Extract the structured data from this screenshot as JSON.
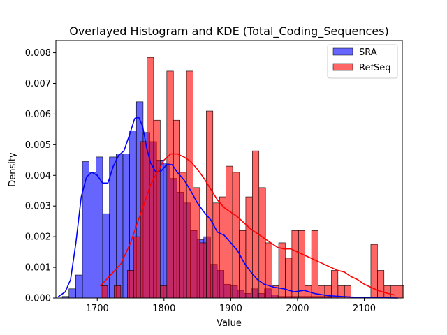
{
  "chart_data": {
    "type": "histogram",
    "title": "Overlayed Histogram and KDE (Total_Coding_Sequences)",
    "xlabel": "Value",
    "ylabel": "Density",
    "xlim": [
      1638,
      2157
    ],
    "ylim": [
      0,
      0.0084
    ],
    "xticks": [
      1700,
      1800,
      1900,
      2000,
      2100
    ],
    "yticks": [
      0.0,
      0.001,
      0.002,
      0.003,
      0.004,
      0.005,
      0.006,
      0.007,
      0.008
    ],
    "ytick_labels": [
      "0.000",
      "0.001",
      "0.002",
      "0.003",
      "0.004",
      "0.005",
      "0.006",
      "0.007",
      "0.008"
    ],
    "grid": false,
    "legend_position": "top-right",
    "series": [
      {
        "name": "SRA",
        "color": "#0000ff",
        "bar_alpha": 0.6,
        "bin_start": 1647.5,
        "bin_width": 10.1,
        "densities": [
          5e-05,
          0.0003,
          0.00075,
          0.00445,
          0.0041,
          0.0046,
          0.00275,
          0.0046,
          0.0047,
          0.0047,
          0.00545,
          0.0064,
          0.0054,
          0.0051,
          0.0045,
          0.0044,
          0.0039,
          0.00345,
          0.0031,
          0.0022,
          0.0019,
          0.002,
          0.0011,
          0.0009,
          0.00045,
          0.0004,
          0.00025,
          0.00015,
          0.0003,
          0.00015,
          0.0003,
          0.0001,
          5e-05,
          5e-05,
          5e-05,
          5e-05,
          5e-05,
          5e-05,
          5e-05,
          5e-05
        ]
      },
      {
        "name": "RefSeq",
        "color": "#ff0000",
        "bar_alpha": 0.6,
        "bin_start": 1705.6,
        "bin_width": 9.86,
        "densities": [
          0.0004,
          0.0,
          0.0004,
          0.0,
          0.0009,
          0.002,
          0.0051,
          0.00785,
          0.0058,
          0.0004,
          0.0074,
          0.0058,
          0.0041,
          0.0074,
          0.0036,
          0.0018,
          0.0061,
          0.0031,
          0.0033,
          0.0043,
          0.0041,
          0.0022,
          0.0033,
          0.0048,
          0.0036,
          0.0018,
          0.0004,
          0.0018,
          0.0013,
          0.0022,
          0.0022,
          0.0004,
          0.0022,
          0.0004,
          0.0004,
          0.0009,
          0.0004,
          0.0004,
          0.0,
          0.0,
          0.0,
          0.00175,
          0.0009,
          0.0004,
          0.0004,
          0.0004
        ]
      }
    ],
    "kde": [
      {
        "name": "SRA",
        "color": "#0000ff",
        "x": [
          1642,
          1652,
          1660,
          1668,
          1676,
          1684,
          1692,
          1700,
          1708,
          1716,
          1724,
          1732,
          1740,
          1748,
          1756,
          1762,
          1768,
          1774,
          1780,
          1788,
          1796,
          1804,
          1812,
          1820,
          1830,
          1840,
          1850,
          1860,
          1870,
          1880,
          1890,
          1900,
          1910,
          1920,
          1930,
          1940,
          1950,
          1965,
          1980,
          1995,
          2010,
          2025,
          2045,
          2065,
          2090,
          2120,
          2150
        ],
        "y": [
          5e-05,
          0.0002,
          0.0006,
          0.0018,
          0.0033,
          0.00395,
          0.0041,
          0.004,
          0.00375,
          0.00375,
          0.0043,
          0.00465,
          0.0048,
          0.0053,
          0.00585,
          0.0059,
          0.0056,
          0.0049,
          0.0044,
          0.0041,
          0.00415,
          0.00435,
          0.00435,
          0.0041,
          0.00385,
          0.0035,
          0.0031,
          0.0028,
          0.00255,
          0.00215,
          0.00205,
          0.0018,
          0.00155,
          0.00115,
          0.00085,
          0.0006,
          0.00045,
          0.00035,
          0.0003,
          0.0002,
          0.00025,
          0.00015,
          8e-05,
          5e-05,
          2e-05,
          1e-05,
          0.0
        ]
      },
      {
        "name": "RefSeq",
        "color": "#ff0000",
        "x": [
          1705,
          1720,
          1735,
          1750,
          1760,
          1770,
          1780,
          1790,
          1800,
          1810,
          1820,
          1830,
          1840,
          1850,
          1860,
          1870,
          1880,
          1890,
          1900,
          1910,
          1920,
          1930,
          1940,
          1950,
          1960,
          1970,
          1980,
          1990,
          2000,
          2010,
          2020,
          2030,
          2040,
          2050,
          2060,
          2070,
          2080,
          2090,
          2100,
          2110,
          2120,
          2130,
          2145
        ],
        "y": [
          0.0004,
          0.00075,
          0.0011,
          0.0018,
          0.00245,
          0.00305,
          0.0037,
          0.0041,
          0.0045,
          0.0047,
          0.0047,
          0.0046,
          0.00445,
          0.0042,
          0.0039,
          0.00355,
          0.0032,
          0.00295,
          0.0028,
          0.00265,
          0.00245,
          0.00225,
          0.0021,
          0.00195,
          0.0018,
          0.00165,
          0.0016,
          0.0016,
          0.0015,
          0.0014,
          0.0013,
          0.0012,
          0.0011,
          0.001,
          0.0009,
          0.00085,
          0.0007,
          0.0006,
          0.00045,
          0.00035,
          0.00025,
          0.00018,
          0.0001
        ]
      }
    ]
  }
}
